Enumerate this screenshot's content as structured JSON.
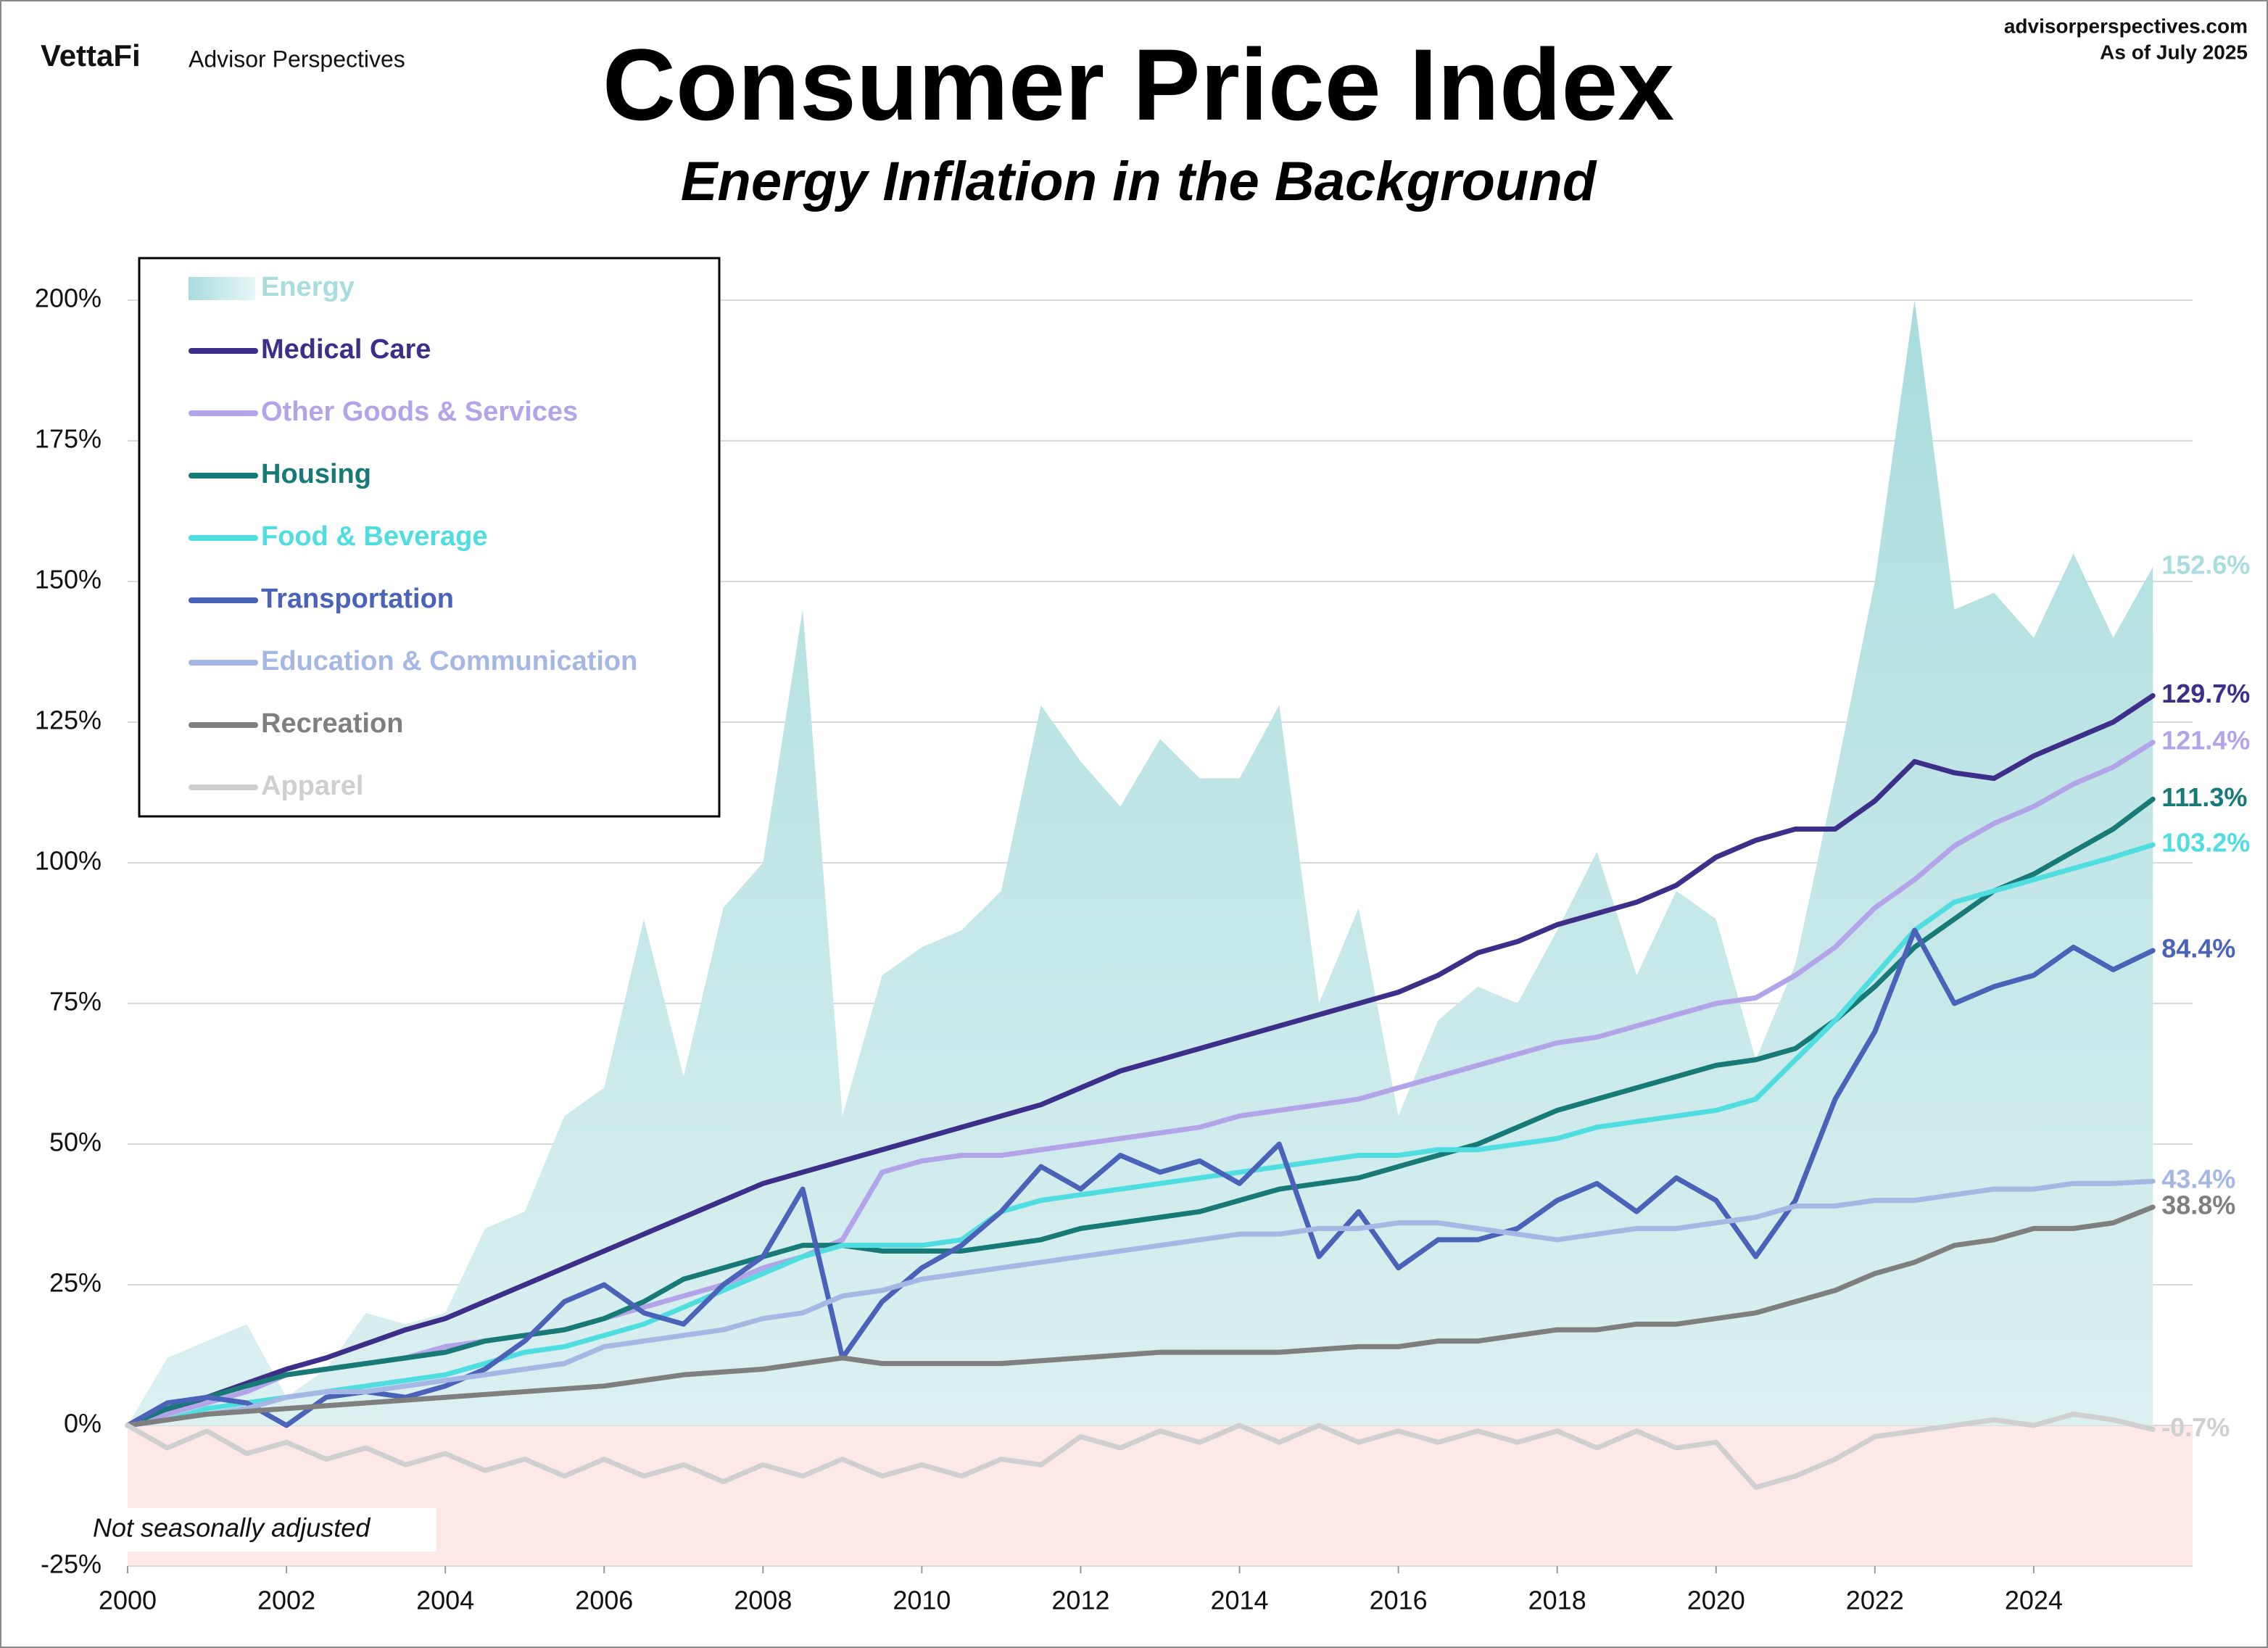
{
  "chart_data": {
    "type": "line",
    "brand": "VettaFi",
    "brand_subtitle": "Advisor Perspectives",
    "source": "advisorperspectives.com",
    "date_note": "As of July 2025",
    "title": "Consumer Price Index",
    "subtitle": "Energy Inflation in the Background",
    "note": "Not seasonally adjusted",
    "grid": true,
    "legend": "upper left",
    "xlim": [
      2000,
      2026
    ],
    "xticks": [
      2000,
      2002,
      2004,
      2006,
      2008,
      2010,
      2012,
      2014,
      2016,
      2018,
      2020,
      2022,
      2024
    ],
    "ylim": [
      -25,
      200
    ],
    "yticks": [
      {
        "value": -25,
        "label": "-25%"
      },
      {
        "value": 0,
        "label": "0%"
      },
      {
        "value": 25,
        "label": "25%"
      },
      {
        "value": 50,
        "label": "50%"
      },
      {
        "value": 75,
        "label": "75%"
      },
      {
        "value": 100,
        "label": "100%"
      },
      {
        "value": 125,
        "label": "125%"
      },
      {
        "value": 150,
        "label": "150%"
      },
      {
        "value": 175,
        "label": "175%"
      },
      {
        "value": 200,
        "label": "200%"
      }
    ],
    "x": [
      2000,
      2000.5,
      2001,
      2001.5,
      2002,
      2002.5,
      2003,
      2003.5,
      2004,
      2004.5,
      2005,
      2005.5,
      2006,
      2006.5,
      2007,
      2007.5,
      2008,
      2008.5,
      2009,
      2009.5,
      2010,
      2010.5,
      2011,
      2011.5,
      2012,
      2012.5,
      2013,
      2013.5,
      2014,
      2014.5,
      2015,
      2015.5,
      2016,
      2016.5,
      2017,
      2017.5,
      2018,
      2018.5,
      2019,
      2019.5,
      2020,
      2020.5,
      2021,
      2021.5,
      2022,
      2022.5,
      2023,
      2023.5,
      2024,
      2024.5,
      2025,
      2025.5
    ],
    "series": [
      {
        "name": "Energy",
        "type": "area",
        "color": "#a9dcdd",
        "values": [
          0,
          12,
          15,
          18,
          5,
          10,
          20,
          18,
          20,
          35,
          38,
          55,
          60,
          90,
          62,
          92,
          100,
          145,
          55,
          80,
          85,
          88,
          95,
          128,
          118,
          110,
          122,
          115,
          115,
          128,
          75,
          92,
          55,
          72,
          78,
          75,
          88,
          102,
          80,
          95,
          90,
          65,
          82,
          115,
          150,
          200,
          145,
          148,
          140,
          155,
          140,
          152.6
        ],
        "value_labels": [
          null,
          null,
          null,
          null,
          null,
          null,
          null,
          null,
          null,
          null,
          null,
          null,
          null,
          null,
          null,
          null,
          null,
          null,
          null,
          null,
          null,
          null,
          null,
          null,
          null,
          null,
          null,
          null,
          null,
          null,
          null,
          null,
          null,
          null,
          null,
          null,
          null,
          null,
          null,
          null,
          null,
          null,
          null,
          null,
          null,
          null,
          null,
          null,
          null,
          null,
          null,
          "152.6%"
        ]
      },
      {
        "name": "Medical Care",
        "color": "#3d2e8a",
        "values": [
          0,
          2.5,
          5,
          7.5,
          10,
          12,
          14.5,
          17,
          19,
          22,
          25,
          28,
          31,
          34,
          37,
          40,
          43,
          45,
          47,
          49,
          51,
          53,
          55,
          57,
          60,
          63,
          65,
          67,
          69,
          71,
          73,
          75,
          77,
          80,
          84,
          86,
          89,
          91,
          93,
          96,
          101,
          104,
          106,
          106,
          111,
          118,
          116,
          115,
          119,
          122,
          125,
          129.7
        ],
        "value_labels": [
          null,
          null,
          null,
          null,
          null,
          null,
          null,
          null,
          null,
          null,
          null,
          null,
          null,
          null,
          null,
          null,
          null,
          null,
          null,
          null,
          null,
          null,
          null,
          null,
          null,
          null,
          null,
          null,
          null,
          null,
          null,
          null,
          null,
          null,
          null,
          null,
          null,
          null,
          null,
          null,
          null,
          null,
          null,
          null,
          null,
          null,
          null,
          null,
          null,
          null,
          null,
          "129.7%"
        ]
      },
      {
        "name": "Other Goods & Services",
        "color": "#b3a3e8",
        "values": [
          0,
          2,
          4,
          6,
          9,
          10,
          11,
          12,
          14,
          15,
          16,
          17,
          19,
          21,
          23,
          25,
          28,
          30,
          33,
          45,
          47,
          48,
          48,
          49,
          50,
          51,
          52,
          53,
          55,
          56,
          57,
          58,
          60,
          62,
          64,
          66,
          68,
          69,
          71,
          73,
          75,
          76,
          80,
          85,
          92,
          97,
          103,
          107,
          110,
          114,
          117,
          121.4
        ],
        "value_labels": [
          null,
          null,
          null,
          null,
          null,
          null,
          null,
          null,
          null,
          null,
          null,
          null,
          null,
          null,
          null,
          null,
          null,
          null,
          null,
          null,
          null,
          null,
          null,
          null,
          null,
          null,
          null,
          null,
          null,
          null,
          null,
          null,
          null,
          null,
          null,
          null,
          null,
          null,
          null,
          null,
          null,
          null,
          null,
          null,
          null,
          null,
          null,
          null,
          null,
          null,
          null,
          "121.4%"
        ]
      },
      {
        "name": "Housing",
        "color": "#177a77",
        "values": [
          0,
          3,
          5,
          7,
          9,
          10,
          11,
          12,
          13,
          15,
          16,
          17,
          19,
          22,
          26,
          28,
          30,
          32,
          32,
          31,
          31,
          31,
          32,
          33,
          35,
          36,
          37,
          38,
          40,
          42,
          43,
          44,
          46,
          48,
          50,
          53,
          56,
          58,
          60,
          62,
          64,
          65,
          67,
          72,
          78,
          85,
          90,
          95,
          98,
          102,
          106,
          111.3
        ],
        "value_labels": [
          null,
          null,
          null,
          null,
          null,
          null,
          null,
          null,
          null,
          null,
          null,
          null,
          null,
          null,
          null,
          null,
          null,
          null,
          null,
          null,
          null,
          null,
          null,
          null,
          null,
          null,
          null,
          null,
          null,
          null,
          null,
          null,
          null,
          null,
          null,
          null,
          null,
          null,
          null,
          null,
          null,
          null,
          null,
          null,
          null,
          null,
          null,
          null,
          null,
          null,
          null,
          "111.3%"
        ]
      },
      {
        "name": "Food & Beverage",
        "color": "#4fdde0",
        "values": [
          0,
          1,
          3,
          4,
          5,
          6,
          7,
          8,
          9,
          11,
          13,
          14,
          16,
          18,
          21,
          24,
          27,
          30,
          32,
          32,
          32,
          33,
          38,
          40,
          41,
          42,
          43,
          44,
          45,
          46,
          47,
          48,
          48,
          49,
          49,
          50,
          51,
          53,
          54,
          55,
          56,
          58,
          65,
          72,
          80,
          88,
          93,
          95,
          97,
          99,
          101,
          103.2
        ],
        "value_labels": [
          null,
          null,
          null,
          null,
          null,
          null,
          null,
          null,
          null,
          null,
          null,
          null,
          null,
          null,
          null,
          null,
          null,
          null,
          null,
          null,
          null,
          null,
          null,
          null,
          null,
          null,
          null,
          null,
          null,
          null,
          null,
          null,
          null,
          null,
          null,
          null,
          null,
          null,
          null,
          null,
          null,
          null,
          null,
          null,
          null,
          null,
          null,
          null,
          null,
          null,
          null,
          "103.2%"
        ]
      },
      {
        "name": "Transportation",
        "color": "#4a63b8",
        "values": [
          0,
          4,
          5,
          4,
          0,
          5,
          6,
          5,
          7,
          10,
          15,
          22,
          25,
          20,
          18,
          25,
          30,
          42,
          12,
          22,
          28,
          32,
          38,
          46,
          42,
          48,
          45,
          47,
          43,
          50,
          30,
          38,
          28,
          33,
          33,
          35,
          40,
          43,
          38,
          44,
          40,
          30,
          40,
          58,
          70,
          88,
          75,
          78,
          80,
          85,
          81,
          84.4
        ],
        "value_labels": [
          null,
          null,
          null,
          null,
          null,
          null,
          null,
          null,
          null,
          null,
          null,
          null,
          null,
          null,
          null,
          null,
          null,
          null,
          null,
          null,
          null,
          null,
          null,
          null,
          null,
          null,
          null,
          null,
          null,
          null,
          null,
          null,
          null,
          null,
          null,
          null,
          null,
          null,
          null,
          null,
          null,
          null,
          null,
          null,
          null,
          null,
          null,
          null,
          null,
          null,
          null,
          "84.4%"
        ]
      },
      {
        "name": "Education & Communication",
        "color": "#a5b8e3",
        "values": [
          0,
          1,
          2,
          3,
          5,
          6,
          6,
          7,
          8,
          9,
          10,
          11,
          14,
          15,
          16,
          17,
          19,
          20,
          23,
          24,
          26,
          27,
          28,
          29,
          30,
          31,
          32,
          33,
          34,
          34,
          35,
          35,
          36,
          36,
          35,
          34,
          33,
          34,
          35,
          35,
          36,
          37,
          39,
          39,
          40,
          40,
          41,
          42,
          42,
          43,
          43,
          43.4
        ],
        "value_labels": [
          null,
          null,
          null,
          null,
          null,
          null,
          null,
          null,
          null,
          null,
          null,
          null,
          null,
          null,
          null,
          null,
          null,
          null,
          null,
          null,
          null,
          null,
          null,
          null,
          null,
          null,
          null,
          null,
          null,
          null,
          null,
          null,
          null,
          null,
          null,
          null,
          null,
          null,
          null,
          null,
          null,
          null,
          null,
          null,
          null,
          null,
          null,
          null,
          null,
          null,
          null,
          "43.4%"
        ]
      },
      {
        "name": "Recreation",
        "color": "#7f7f7f",
        "values": [
          0,
          1,
          2,
          2.5,
          3,
          3.5,
          4,
          4.5,
          5,
          5.5,
          6,
          6.5,
          7,
          8,
          9,
          9.5,
          10,
          11,
          12,
          11,
          11,
          11,
          11,
          11.5,
          12,
          12.5,
          13,
          13,
          13,
          13,
          13.5,
          14,
          14,
          15,
          15,
          16,
          17,
          17,
          18,
          18,
          19,
          20,
          22,
          24,
          27,
          29,
          32,
          33,
          35,
          35,
          36,
          38.8
        ],
        "value_labels": [
          null,
          null,
          null,
          null,
          null,
          null,
          null,
          null,
          null,
          null,
          null,
          null,
          null,
          null,
          null,
          null,
          null,
          null,
          null,
          null,
          null,
          null,
          null,
          null,
          null,
          null,
          null,
          null,
          null,
          null,
          null,
          null,
          null,
          null,
          null,
          null,
          null,
          null,
          null,
          null,
          null,
          null,
          null,
          null,
          null,
          null,
          null,
          null,
          null,
          null,
          null,
          "38.8%"
        ]
      },
      {
        "name": "Apparel",
        "color": "#cfcfcf",
        "values": [
          0,
          -4,
          -1,
          -5,
          -3,
          -6,
          -4,
          -7,
          -5,
          -8,
          -6,
          -9,
          -6,
          -9,
          -7,
          -10,
          -7,
          -9,
          -6,
          -9,
          -7,
          -9,
          -6,
          -7,
          -2,
          -4,
          -1,
          -3,
          0,
          -3,
          0,
          -3,
          -1,
          -3,
          -1,
          -3,
          -1,
          -4,
          -1,
          -4,
          -3,
          -11,
          -9,
          -6,
          -2,
          -1,
          0,
          1,
          0,
          2,
          1,
          -0.7
        ],
        "value_labels": [
          null,
          null,
          null,
          null,
          null,
          null,
          null,
          null,
          null,
          null,
          null,
          null,
          null,
          null,
          null,
          null,
          null,
          null,
          null,
          null,
          null,
          null,
          null,
          null,
          null,
          null,
          null,
          null,
          null,
          null,
          null,
          null,
          null,
          null,
          null,
          null,
          null,
          null,
          null,
          null,
          null,
          null,
          null,
          null,
          null,
          null,
          null,
          null,
          null,
          null,
          null,
          "-0.7%"
        ]
      }
    ]
  }
}
